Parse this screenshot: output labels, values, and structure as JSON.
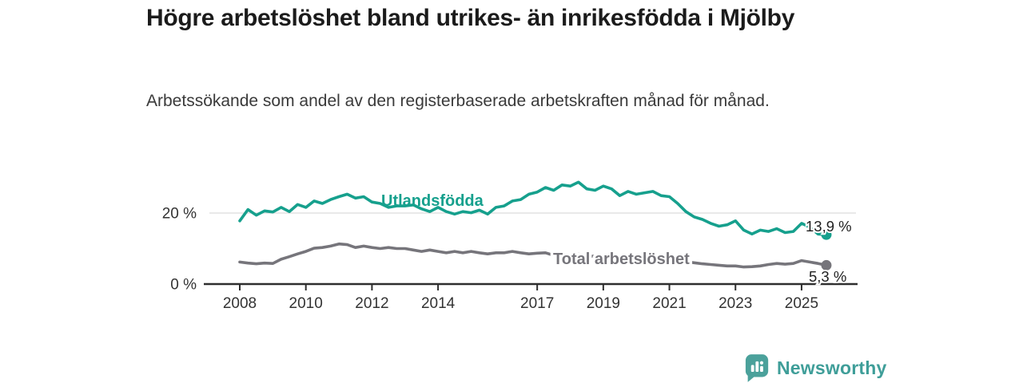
{
  "header": {
    "title": "Högre arbetslöshet bland utrikes- än inrikesfödda i Mjölby",
    "subtitle": "Arbetssökande som andel av den registerbaserade arbetskraften månad för månad."
  },
  "chart_data": {
    "type": "line",
    "title": "Högre arbetslöshet bland utrikes- än inrikesfödda i Mjölby",
    "subtitle": "Arbetssökande som andel av den registerbaserade arbetskraften månad för månad.",
    "xlabel": "",
    "ylabel": "",
    "xlim": [
      2006.9,
      2026.7
    ],
    "ylim": [
      0,
      32
    ],
    "grid": "horizontal gridline at 20% only",
    "legend_position": "inline labels on lines, end-value labels at right",
    "x_ticks": [
      2008,
      2010,
      2012,
      2014,
      2017,
      2019,
      2021,
      2023,
      2025
    ],
    "y_ticks": [
      {
        "value": 0,
        "label": "0 %"
      },
      {
        "value": 20,
        "label": "20 %"
      }
    ],
    "x": [
      2008,
      2008.25,
      2008.5,
      2008.75,
      2009,
      2009.25,
      2009.5,
      2009.75,
      2010,
      2010.25,
      2010.5,
      2010.75,
      2011,
      2011.25,
      2011.5,
      2011.75,
      2012,
      2012.25,
      2012.5,
      2012.75,
      2013,
      2013.25,
      2013.5,
      2013.75,
      2014,
      2014.25,
      2014.5,
      2014.75,
      2015,
      2015.25,
      2015.5,
      2015.75,
      2016,
      2016.25,
      2016.5,
      2016.75,
      2017,
      2017.25,
      2017.5,
      2017.75,
      2018,
      2018.25,
      2018.5,
      2018.75,
      2019,
      2019.25,
      2019.5,
      2019.75,
      2020,
      2020.25,
      2020.5,
      2020.75,
      2021,
      2021.25,
      2021.5,
      2021.75,
      2022,
      2022.25,
      2022.5,
      2022.75,
      2023,
      2023.25,
      2023.5,
      2023.75,
      2024,
      2024.25,
      2024.5,
      2024.75,
      2025,
      2025.25,
      2025.5,
      2025.75
    ],
    "series": [
      {
        "name": "Utlandsfödda",
        "color": "#16a08d",
        "end_label": "13,9 %",
        "end_value": 13.9,
        "values": [
          17.8,
          21.0,
          19.4,
          20.6,
          20.3,
          21.6,
          20.4,
          22.4,
          21.6,
          23.4,
          22.7,
          23.8,
          24.6,
          25.3,
          24.2,
          24.6,
          23.1,
          22.7,
          21.6,
          22.0,
          22.0,
          22.3,
          21.2,
          20.4,
          21.6,
          20.4,
          19.7,
          20.4,
          20.1,
          20.8,
          19.7,
          21.6,
          22.0,
          23.4,
          23.8,
          25.3,
          25.9,
          27.2,
          26.4,
          27.9,
          27.6,
          28.7,
          26.8,
          26.4,
          27.6,
          26.8,
          24.9,
          26.1,
          25.3,
          25.7,
          26.1,
          24.9,
          24.6,
          22.7,
          20.4,
          18.9,
          18.2,
          17.1,
          16.3,
          16.7,
          17.8,
          15.2,
          14.1,
          15.2,
          14.8,
          15.6,
          14.5,
          14.8,
          17.1,
          16.0,
          14.1,
          13.9
        ]
      },
      {
        "name": "Total arbetslöshet",
        "color": "#76757b",
        "end_label": "5,3 %",
        "end_value": 5.3,
        "values": [
          6.2,
          5.9,
          5.7,
          5.9,
          5.8,
          7.0,
          7.7,
          8.5,
          9.2,
          10.1,
          10.3,
          10.7,
          11.3,
          11.1,
          10.3,
          10.7,
          10.3,
          10.0,
          10.3,
          10.0,
          10.0,
          9.6,
          9.2,
          9.6,
          9.2,
          8.8,
          9.2,
          8.8,
          9.2,
          8.8,
          8.5,
          8.8,
          8.8,
          9.2,
          8.8,
          8.5,
          8.7,
          8.8,
          8.1,
          8.3,
          8.1,
          8.5,
          7.7,
          7.9,
          7.7,
          7.3,
          7.0,
          7.3,
          7.5,
          8.0,
          7.8,
          7.5,
          7.2,
          6.8,
          6.3,
          6.0,
          5.7,
          5.5,
          5.3,
          5.1,
          5.1,
          4.8,
          4.9,
          5.1,
          5.5,
          5.8,
          5.6,
          5.8,
          6.6,
          6.2,
          5.8,
          5.3
        ]
      }
    ]
  },
  "branding": {
    "logo_text": "Newsworthy",
    "logo_icon": "newsworthy-bar-chart-pin-icon",
    "logo_color": "#4ba19b"
  },
  "colors": {
    "foreign_born_line": "#16a08d",
    "total_line": "#76757b",
    "axis": "#2e2e2e",
    "gridline": "#dcdcdc",
    "text_dark": "#1b1b1b",
    "text_medium": "#333333"
  }
}
